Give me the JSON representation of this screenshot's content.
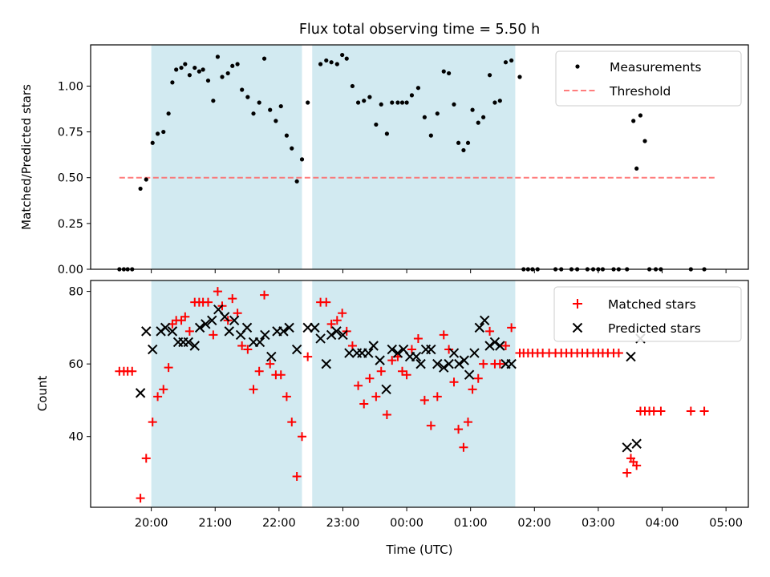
{
  "chart_data": {
    "type": "scatter",
    "title": "Flux total observing time = 5.50 h",
    "xlabel": "Time (UTC)",
    "x_unit": "hours since 20:00 UTC",
    "x_ticks": [
      "20:00",
      "21:00",
      "22:00",
      "23:00",
      "00:00",
      "01:00",
      "02:00",
      "03:00",
      "04:00",
      "05:00"
    ],
    "shaded_intervals": [
      [
        0.0,
        2.36
      ],
      [
        2.52,
        5.7
      ]
    ],
    "colors": {
      "shade": "#add8e6",
      "matched": "#ff0000",
      "predicted": "#000000",
      "threshold": "#ff6666",
      "measurement": "#000000"
    },
    "top": {
      "ylabel": "Matched/Predicted stars",
      "ylim": [
        0,
        1.225
      ],
      "yticks": [
        0,
        0.25,
        0.5,
        0.75,
        1.0
      ],
      "ytick_labels": [
        "0.00",
        "0.25",
        "0.50",
        "0.75",
        "1.00"
      ],
      "legend": {
        "position": "top-right",
        "entries": [
          "Measurements",
          "Threshold"
        ]
      },
      "threshold": {
        "name": "Threshold",
        "y": 0.5,
        "x_range": [
          -0.5,
          8.85
        ]
      },
      "measurements": {
        "name": "Measurements",
        "x": [
          -0.5,
          -0.43,
          -0.37,
          -0.3,
          -0.17,
          -0.08,
          0.02,
          0.1,
          0.19,
          0.27,
          0.33,
          0.39,
          0.47,
          0.53,
          0.6,
          0.68,
          0.75,
          0.81,
          0.89,
          0.97,
          1.04,
          1.11,
          1.2,
          1.27,
          1.35,
          1.42,
          1.51,
          1.6,
          1.69,
          1.77,
          1.86,
          1.95,
          2.03,
          2.12,
          2.2,
          2.28,
          2.36,
          2.45,
          2.65,
          2.74,
          2.82,
          2.91,
          2.99,
          3.06,
          3.15,
          3.24,
          3.33,
          3.42,
          3.52,
          3.6,
          3.69,
          3.77,
          3.86,
          3.93,
          4.0,
          4.08,
          4.18,
          4.28,
          4.38,
          4.48,
          4.58,
          4.66,
          4.74,
          4.81,
          4.89,
          4.96,
          5.03,
          5.12,
          5.2,
          5.3,
          5.38,
          5.46,
          5.55,
          5.64,
          5.77,
          5.83,
          5.9,
          5.97,
          6.05,
          6.33,
          6.42,
          6.58,
          6.67,
          6.83,
          6.92,
          7.0,
          7.07,
          7.24,
          7.32,
          7.45,
          7.55,
          7.6,
          7.66,
          7.73,
          7.8,
          7.9,
          7.98,
          8.45,
          8.66
        ],
        "y": [
          0,
          0,
          0,
          0,
          0.44,
          0.49,
          0.69,
          0.74,
          0.75,
          0.85,
          1.02,
          1.09,
          1.1,
          1.12,
          1.06,
          1.1,
          1.08,
          1.09,
          1.03,
          0.92,
          1.16,
          1.05,
          1.07,
          1.11,
          1.12,
          0.98,
          0.94,
          0.85,
          0.91,
          1.15,
          0.87,
          0.81,
          0.89,
          0.73,
          0.66,
          0.48,
          0.6,
          0.91,
          1.12,
          1.14,
          1.13,
          1.12,
          1.17,
          1.15,
          1.0,
          0.91,
          0.92,
          0.94,
          0.79,
          0.9,
          0.74,
          0.91,
          0.91,
          0.91,
          0.91,
          0.95,
          0.99,
          0.83,
          0.73,
          0.85,
          1.08,
          1.07,
          0.9,
          0.69,
          0.65,
          0.69,
          0.87,
          0.8,
          0.83,
          1.06,
          0.91,
          0.92,
          1.13,
          1.14,
          1.05,
          0,
          0,
          0,
          0,
          0,
          0,
          0,
          0,
          0,
          0,
          0,
          0,
          0,
          0,
          0,
          0.81,
          0.55,
          0.84,
          0.7,
          0,
          0,
          0,
          0,
          0
        ]
      }
    },
    "bottom": {
      "ylabel": "Count",
      "ylim": [
        20.5,
        83
      ],
      "yticks": [
        40,
        60,
        80
      ],
      "legend": {
        "position": "top-right",
        "entries": [
          "Matched stars",
          "Predicted stars"
        ]
      },
      "matched": {
        "name": "Matched stars",
        "x": [
          -0.5,
          -0.43,
          -0.37,
          -0.3,
          -0.17,
          -0.08,
          0.02,
          0.1,
          0.19,
          0.27,
          0.33,
          0.39,
          0.47,
          0.53,
          0.6,
          0.68,
          0.75,
          0.81,
          0.89,
          0.97,
          1.04,
          1.11,
          1.2,
          1.27,
          1.35,
          1.42,
          1.51,
          1.6,
          1.69,
          1.77,
          1.86,
          1.95,
          2.03,
          2.12,
          2.2,
          2.28,
          2.36,
          2.45,
          2.65,
          2.74,
          2.82,
          2.91,
          2.99,
          3.06,
          3.15,
          3.24,
          3.33,
          3.42,
          3.52,
          3.6,
          3.69,
          3.77,
          3.86,
          3.93,
          4.0,
          4.08,
          4.18,
          4.28,
          4.38,
          4.48,
          4.58,
          4.66,
          4.74,
          4.81,
          4.89,
          4.96,
          5.03,
          5.12,
          5.2,
          5.3,
          5.38,
          5.46,
          5.55,
          5.64,
          5.77,
          5.83,
          5.9,
          5.97,
          6.05,
          6.13,
          6.23,
          6.33,
          6.42,
          6.5,
          6.58,
          6.67,
          6.75,
          6.83,
          6.92,
          7.0,
          7.07,
          7.15,
          7.24,
          7.32,
          7.45,
          7.51,
          7.55,
          7.6,
          7.66,
          7.73,
          7.8,
          7.87,
          7.98,
          8.45,
          8.66
        ],
        "y": [
          58,
          58,
          58,
          58,
          23,
          34,
          44,
          51,
          53,
          59,
          71,
          72,
          72,
          73,
          69,
          77,
          77,
          77,
          77,
          68,
          80,
          76,
          72,
          78,
          74,
          65,
          64,
          53,
          58,
          79,
          60,
          57,
          57,
          51,
          44,
          29,
          40,
          62,
          77,
          77,
          71,
          72,
          74,
          69,
          65,
          54,
          49,
          56,
          51,
          58,
          46,
          61,
          62,
          58,
          57,
          64,
          67,
          50,
          43,
          51,
          68,
          64,
          55,
          42,
          37,
          44,
          53,
          56,
          60,
          69,
          60,
          60,
          65,
          70,
          63,
          63,
          63,
          63,
          63,
          63,
          63,
          63,
          63,
          63,
          63,
          63,
          63,
          63,
          63,
          63,
          63,
          63,
          63,
          63,
          30,
          34,
          33,
          32,
          47,
          47,
          47,
          47,
          47,
          47,
          47
        ]
      },
      "predicted": {
        "name": "Predicted stars",
        "x": [
          -0.17,
          -0.08,
          0.02,
          0.15,
          0.22,
          0.33,
          0.42,
          0.5,
          0.58,
          0.68,
          0.76,
          0.85,
          0.95,
          1.05,
          1.15,
          1.22,
          1.3,
          1.4,
          1.5,
          1.6,
          1.7,
          1.78,
          1.88,
          1.97,
          2.07,
          2.16,
          2.28,
          2.45,
          2.56,
          2.65,
          2.74,
          2.82,
          2.9,
          3.0,
          3.1,
          3.22,
          3.3,
          3.4,
          3.48,
          3.58,
          3.68,
          3.77,
          3.86,
          3.95,
          4.05,
          4.15,
          4.22,
          4.3,
          4.38,
          4.48,
          4.58,
          4.66,
          4.74,
          4.82,
          4.9,
          4.98,
          5.06,
          5.14,
          5.22,
          5.3,
          5.38,
          5.46,
          5.55,
          5.64,
          7.45,
          7.51,
          7.6,
          7.66
        ],
        "y": [
          52,
          69,
          64,
          69,
          70,
          69,
          66,
          66,
          66,
          65,
          70,
          71,
          72,
          75,
          73,
          69,
          72,
          68,
          70,
          66,
          66,
          68,
          62,
          69,
          69,
          70,
          64,
          70,
          70,
          67,
          60,
          68,
          69,
          68,
          63,
          63,
          63,
          63,
          65,
          61,
          53,
          64,
          63,
          64,
          62,
          62,
          60,
          64,
          64,
          60,
          59,
          60,
          63,
          60,
          61,
          57,
          63,
          70,
          72,
          65,
          66,
          65,
          60,
          60,
          37,
          62,
          38,
          67
        ]
      }
    }
  }
}
